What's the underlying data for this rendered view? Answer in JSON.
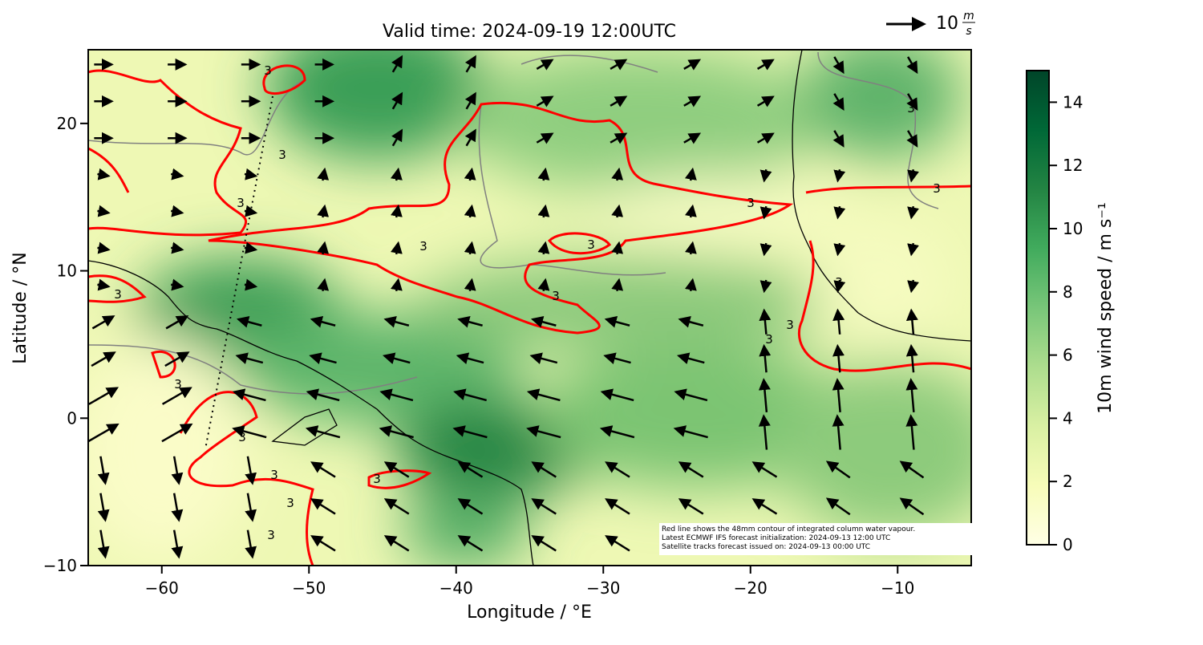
{
  "chart_data": {
    "type": "map",
    "title": "Valid time: 2024-09-19 12:00UTC",
    "xlabel": "Longitude / °E",
    "ylabel": "Latitude / °N",
    "xlim": [
      -65,
      -5
    ],
    "ylim": [
      -10,
      25
    ],
    "xticks": [
      {
        "value": -60,
        "label": "−60"
      },
      {
        "value": -50,
        "label": "−50"
      },
      {
        "value": -40,
        "label": "−40"
      },
      {
        "value": -30,
        "label": "−30"
      },
      {
        "value": -20,
        "label": "−20"
      },
      {
        "value": -10,
        "label": "−10"
      }
    ],
    "yticks": [
      {
        "value": -10,
        "label": "−10"
      },
      0,
      10,
      20
    ],
    "colorbar": {
      "label": "10m wind speed / m s⁻¹",
      "lim": [
        0,
        15
      ],
      "ticks": [
        0,
        2,
        4,
        6,
        8,
        10,
        12,
        14
      ],
      "colormap": [
        "#ffffe5",
        "#f7fcb9",
        "#d9f0a3",
        "#addd8e",
        "#78c679",
        "#41ab5d",
        "#238443",
        "#006837",
        "#004529"
      ]
    },
    "quiver_key": {
      "value": 10,
      "unit_top": "m",
      "unit_bottom": "s"
    },
    "contour_label": "3",
    "contour_color": "#ff0000",
    "annotation": [
      "Red line shows the 48mm contour of integrated column water vapour.",
      "Latest ECMWF IFS forecast initialization: 2024-09-13 12:00 UTC",
      "Satellite tracks forecast issued on: 2024-09-13 00:00 UTC"
    ]
  }
}
